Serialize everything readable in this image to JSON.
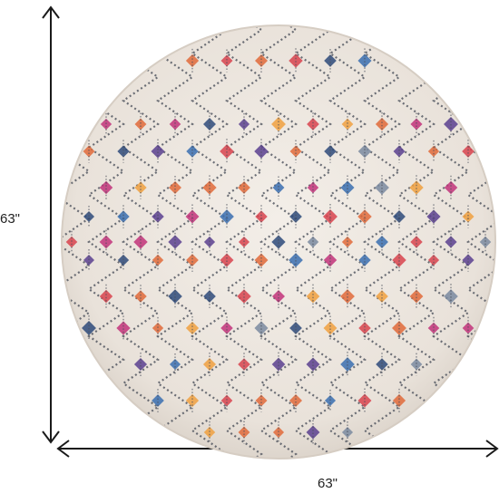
{
  "dimensions": {
    "height_label": "63\"",
    "width_label": "63\""
  },
  "rug": {
    "shape": "round",
    "base_color": "#ede7e0",
    "lattice_color": "#4a4f5a",
    "accent_colors": [
      "#d8434d",
      "#5b3f8f",
      "#3a6fb0",
      "#e06a3a",
      "#2e4a7a",
      "#c2337a",
      "#7a8aa0",
      "#f0a040"
    ]
  },
  "colors": {
    "arrow": "#1a1a1a"
  }
}
